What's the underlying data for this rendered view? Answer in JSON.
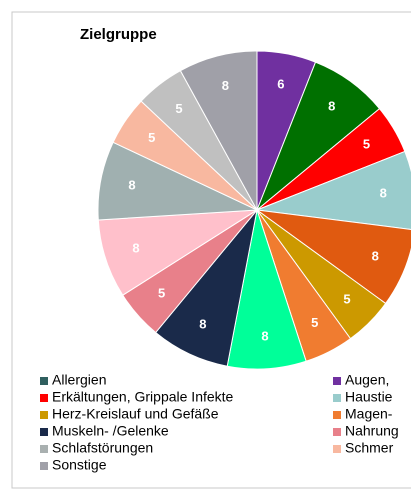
{
  "chart_data": {
    "type": "pie",
    "title": "Zielgruppe",
    "values": [
      6,
      8,
      5,
      8,
      8,
      5,
      5,
      8,
      8,
      5,
      8,
      8,
      5,
      5,
      8
    ],
    "colors": [
      "#7030a0",
      "#007000",
      "#ff0000",
      "#99cccc",
      "#e05a10",
      "#cc9900",
      "#f07c30",
      "#00ff99",
      "#1a2a4a",
      "#e8808a",
      "#ffc0cb",
      "#a0b0b0",
      "#f8b8a0",
      "#c0c0c0",
      "#a0a0a8"
    ],
    "legend": [
      {
        "name": "Allergien",
        "color": "#2f5f5f"
      },
      {
        "name": "Augen,",
        "color": "#7030a0"
      },
      {
        "name": "Erkältungen, Grippale Infekte",
        "color": "#ff0000"
      },
      {
        "name": "Haustie",
        "color": "#99cccc"
      },
      {
        "name": "Herz-Kreislauf und Gefäße",
        "color": "#cc9900"
      },
      {
        "name": "Magen-",
        "color": "#f07c30"
      },
      {
        "name": "Muskeln- /Gelenke",
        "color": "#1a2a4a"
      },
      {
        "name": "Nahrung",
        "color": "#e8808a"
      },
      {
        "name": "Schlafstörungen",
        "color": "#a9b0b0"
      },
      {
        "name": "Schmer",
        "color": "#f8b8a0"
      },
      {
        "name": "Sonstige",
        "color": "#a0a0a8"
      }
    ]
  }
}
